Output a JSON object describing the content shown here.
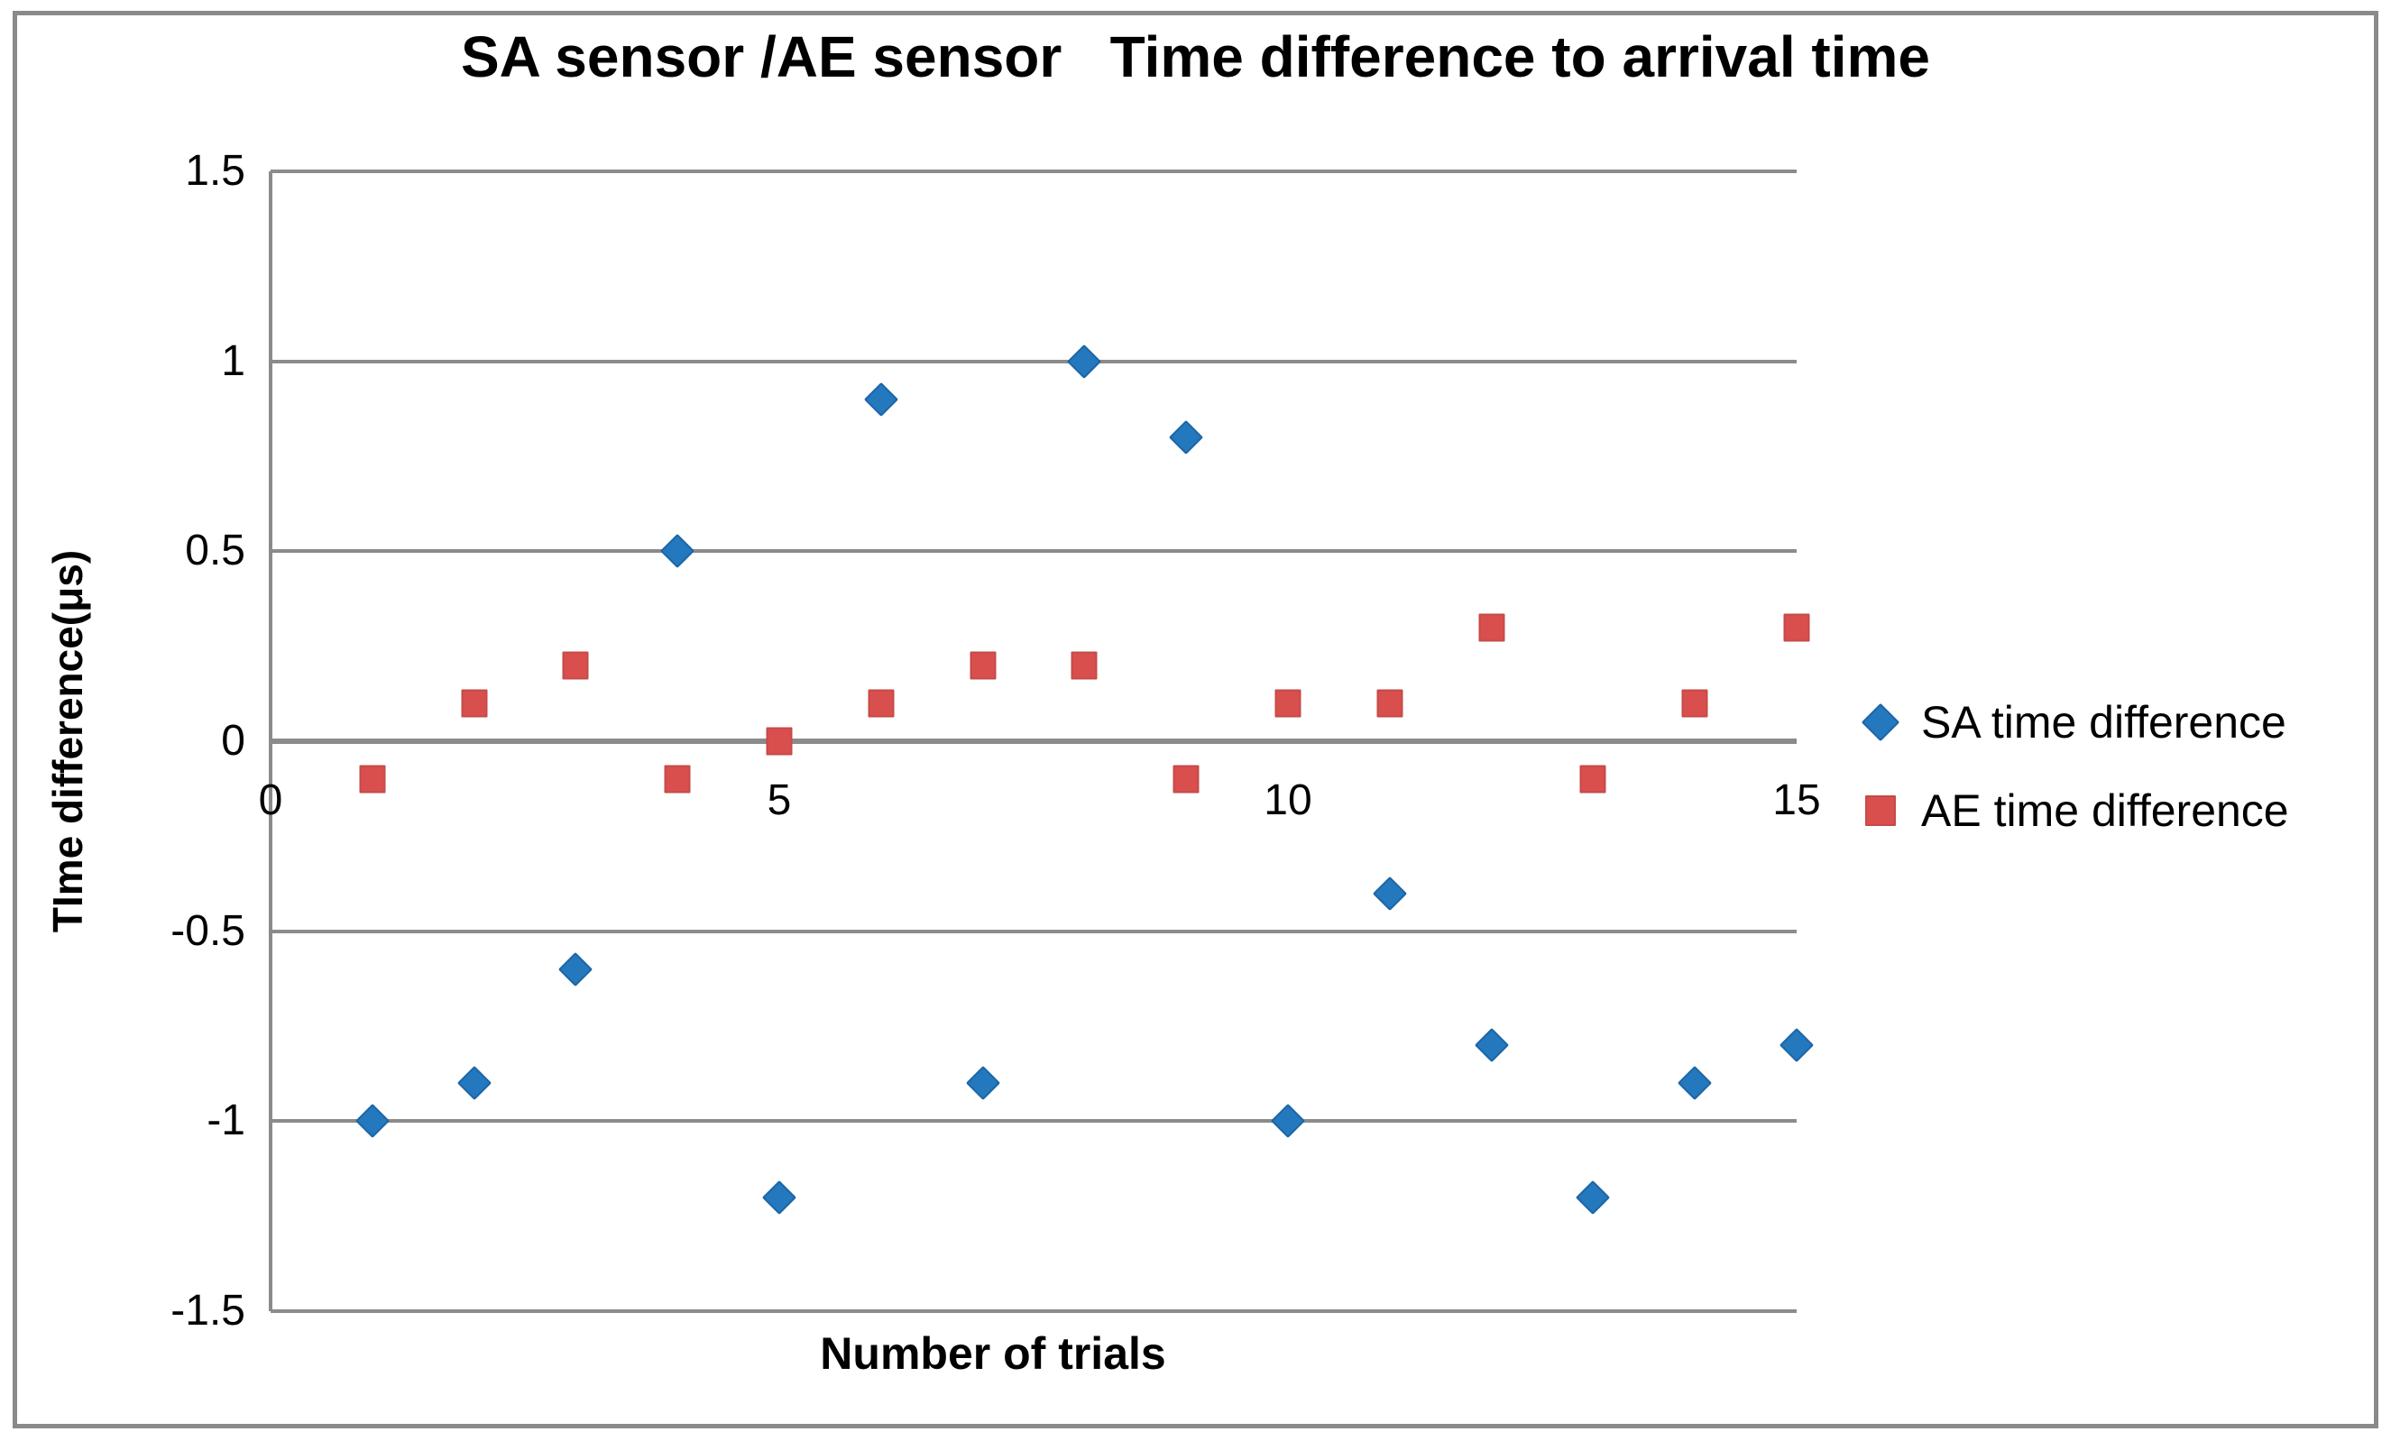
{
  "title": "SA sensor /AE sensor   Time difference to arrival time",
  "axes": {
    "y_title": "TIme difference(μs)",
    "x_title": "Number of trials",
    "y_ticks": [
      "1.5",
      "1",
      "0.5",
      "0",
      "-0.5",
      "-1",
      "-1.5"
    ],
    "x_ticks": [
      "0",
      "5",
      "10",
      "15"
    ]
  },
  "legend": {
    "items": [
      {
        "label": "SA time difference",
        "marker": "diamond",
        "color": "#2478bd"
      },
      {
        "label": "AE time difference",
        "marker": "square",
        "color": "#d94f4d"
      }
    ]
  },
  "colors": {
    "sa_series": "#2478bd",
    "ae_series": "#d94f4d",
    "gridline": "#8b8b8b",
    "chart_border": "#8a8a8a",
    "text": "#000000",
    "background": "#ffffff"
  },
  "chart_data": {
    "type": "scatter",
    "title": "SA sensor /AE sensor   Time difference to arrival time",
    "xlabel": "Number of trials",
    "ylabel": "TIme difference(μs)",
    "x": [
      1,
      2,
      3,
      4,
      5,
      6,
      7,
      8,
      9,
      10,
      11,
      12,
      13,
      14,
      15
    ],
    "series": [
      {
        "name": "SA time difference",
        "marker": "diamond",
        "color": "#2478bd",
        "values": [
          -1.0,
          -0.9,
          -0.6,
          0.5,
          -1.2,
          0.9,
          -0.9,
          1.0,
          0.8,
          -1.0,
          -0.4,
          -0.8,
          -1.2,
          -0.9,
          -0.8
        ]
      },
      {
        "name": "AE time difference",
        "marker": "square",
        "color": "#d94f4d",
        "values": [
          -0.1,
          0.1,
          0.2,
          -0.1,
          0.0,
          0.1,
          0.2,
          0.2,
          -0.1,
          0.1,
          0.1,
          0.3,
          -0.1,
          0.1,
          0.3
        ]
      }
    ],
    "xlim": [
      0,
      15
    ],
    "ylim": [
      -1.5,
      1.5
    ],
    "y_gridlines": [
      1.5,
      1.0,
      0.5,
      0.0,
      -0.5,
      -1.0,
      -1.5
    ],
    "x_tick_values": [
      0,
      5,
      10,
      15
    ],
    "grid": "horizontal",
    "legend_position": "right"
  }
}
